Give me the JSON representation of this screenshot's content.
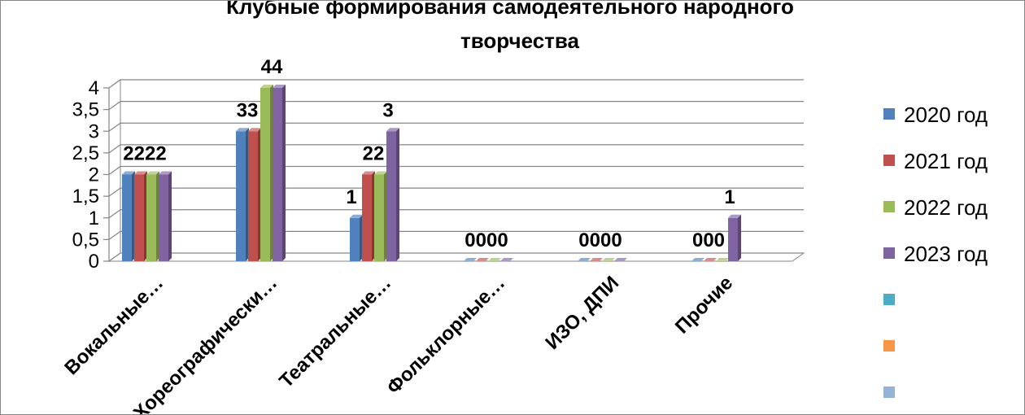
{
  "chart_data": {
    "type": "bar",
    "title": "Клубные формирования самодеятельного народного творчества",
    "title_lines": [
      "Клубные формирования самодеятельного народного",
      "творчества"
    ],
    "xlabel": "",
    "ylabel": "",
    "categories": [
      "Вокальные…",
      "Хореографически…",
      "Театральные…",
      "Фольклорные…",
      "ИЗО, ДПИ",
      "Прочие"
    ],
    "series": [
      {
        "name": "2020 год",
        "color": "#4F81BD",
        "values": [
          2,
          3,
          1,
          0,
          0,
          0
        ]
      },
      {
        "name": "2021 год",
        "color": "#C0504D",
        "values": [
          2,
          3,
          2,
          0,
          0,
          0
        ]
      },
      {
        "name": "2022 год",
        "color": "#9BBB59",
        "values": [
          2,
          4,
          2,
          0,
          0,
          0
        ]
      },
      {
        "name": "2023 год",
        "color": "#8064A2",
        "values": [
          2,
          4,
          3,
          0,
          0,
          1
        ]
      }
    ],
    "extra_legend_colors": [
      "#4BACC6",
      "#F79646",
      "#95B3D7"
    ],
    "yticks": [
      "0",
      "0,5",
      "1",
      "1,5",
      "2",
      "2,5",
      "3",
      "3,5",
      "4"
    ],
    "ylim": [
      0,
      4
    ],
    "grid": true,
    "legend_position": "right",
    "data_labels": [
      {
        "category": 0,
        "text": "2222"
      },
      {
        "category": 1,
        "text": "33"
      },
      {
        "category": 1,
        "text": "44"
      },
      {
        "category": 2,
        "text": "1"
      },
      {
        "category": 2,
        "text": "22"
      },
      {
        "category": 2,
        "text": "3"
      },
      {
        "category": 3,
        "text": "0000"
      },
      {
        "category": 4,
        "text": "0000"
      },
      {
        "category": 5,
        "text": "000"
      },
      {
        "category": 5,
        "text": "1"
      }
    ]
  }
}
